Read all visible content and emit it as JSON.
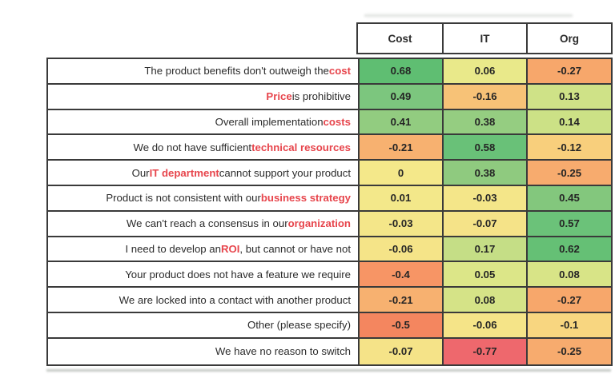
{
  "style": {
    "highlight_color": "#e7454c",
    "border_color": "#3a3a3a",
    "text_color": "#2b2b2b"
  },
  "table": {
    "columns": [
      "Cost",
      "IT",
      "Org"
    ],
    "rows": [
      {
        "label": {
          "pre": "The product benefits don't outweigh the ",
          "highlight": "cost",
          "post": ""
        },
        "cells": [
          {
            "value": "0.68",
            "color": "#5fbe72"
          },
          {
            "value": "0.06",
            "color": "#e9e98a"
          },
          {
            "value": "-0.27",
            "color": "#f7a76b"
          }
        ]
      },
      {
        "label": {
          "pre": "",
          "highlight": "Price",
          "post": " is prohibitive"
        },
        "cells": [
          {
            "value": "0.49",
            "color": "#7cc67e"
          },
          {
            "value": "-0.16",
            "color": "#f7c277"
          },
          {
            "value": "0.13",
            "color": "#cfe287"
          }
        ]
      },
      {
        "label": {
          "pre": "Overall implementation ",
          "highlight": "costs",
          "post": ""
        },
        "cells": [
          {
            "value": "0.41",
            "color": "#92cc80"
          },
          {
            "value": "0.38",
            "color": "#95cd81"
          },
          {
            "value": "0.14",
            "color": "#cce186"
          }
        ]
      },
      {
        "label": {
          "pre": "We do not have sufficient ",
          "highlight": "technical resources",
          "post": ""
        },
        "cells": [
          {
            "value": "-0.21",
            "color": "#f7b170"
          },
          {
            "value": "0.58",
            "color": "#69c178"
          },
          {
            "value": "-0.12",
            "color": "#f8cf7c"
          }
        ]
      },
      {
        "label": {
          "pre": "Our ",
          "highlight": "IT department",
          "post": " cannot support your product"
        },
        "cells": [
          {
            "value": "0",
            "color": "#f4e88a"
          },
          {
            "value": "0.38",
            "color": "#8fca7f"
          },
          {
            "value": "-0.25",
            "color": "#f7ab6e"
          }
        ]
      },
      {
        "label": {
          "pre": "Product is not consistent with our ",
          "highlight": "business strategy",
          "post": ""
        },
        "cells": [
          {
            "value": "0.01",
            "color": "#f3e88a"
          },
          {
            "value": "-0.03",
            "color": "#f4e689"
          },
          {
            "value": "0.45",
            "color": "#83c77d"
          }
        ]
      },
      {
        "label": {
          "pre": "We can't reach a consensus in our ",
          "highlight": "organization",
          "post": ""
        },
        "cells": [
          {
            "value": "-0.03",
            "color": "#f4e689"
          },
          {
            "value": "-0.07",
            "color": "#f5e388"
          },
          {
            "value": "0.57",
            "color": "#6bc279"
          }
        ]
      },
      {
        "label": {
          "pre": "I need to develop an ",
          "highlight": "ROI",
          "post": ", but cannot or have not"
        },
        "cells": [
          {
            "value": "-0.06",
            "color": "#f5e488"
          },
          {
            "value": "0.17",
            "color": "#c5de86"
          },
          {
            "value": "0.62",
            "color": "#65c075"
          }
        ]
      },
      {
        "label": {
          "pre": "Your product does not have a feature we require",
          "highlight": "",
          "post": ""
        },
        "cells": [
          {
            "value": "-0.4",
            "color": "#f79565"
          },
          {
            "value": "0.05",
            "color": "#dce688"
          },
          {
            "value": "0.08",
            "color": "#d8e487"
          }
        ]
      },
      {
        "label": {
          "pre": "We are locked into a contact with another product",
          "highlight": "",
          "post": ""
        },
        "cells": [
          {
            "value": "-0.21",
            "color": "#f7b170"
          },
          {
            "value": "0.08",
            "color": "#d5e387"
          },
          {
            "value": "-0.27",
            "color": "#f7a76b"
          }
        ]
      },
      {
        "label": {
          "pre": "Other (please specify)",
          "highlight": "",
          "post": ""
        },
        "cells": [
          {
            "value": "-0.5",
            "color": "#f4865f"
          },
          {
            "value": "-0.06",
            "color": "#f5e488"
          },
          {
            "value": "-0.1",
            "color": "#f8d680"
          }
        ]
      },
      {
        "label": {
          "pre": "We have no reason to switch",
          "highlight": "",
          "post": ""
        },
        "cells": [
          {
            "value": "-0.07",
            "color": "#f5e388"
          },
          {
            "value": "-0.77",
            "color": "#ee686d"
          },
          {
            "value": "-0.25",
            "color": "#f7ab6e"
          }
        ]
      }
    ]
  },
  "chart_data": {
    "type": "heatmap",
    "columns": [
      "Cost",
      "IT",
      "Org"
    ],
    "rows": [
      "The product benefits don't outweigh the cost",
      "Price is prohibitive",
      "Overall implementation costs",
      "We do not have sufficient technical resources",
      "Our IT department cannot support your product",
      "Product is not consistent with our business strategy",
      "We can't reach a consensus in our organization",
      "I need to develop an ROI, but cannot or have not",
      "Your product does not have a feature we require",
      "We are locked into a contact with another product",
      "Other (please specify)",
      "We have no reason to switch"
    ],
    "values": [
      [
        0.68,
        0.06,
        -0.27
      ],
      [
        0.49,
        -0.16,
        0.13
      ],
      [
        0.41,
        0.38,
        0.14
      ],
      [
        -0.21,
        0.58,
        -0.12
      ],
      [
        0,
        0.38,
        -0.25
      ],
      [
        0.01,
        -0.03,
        0.45
      ],
      [
        -0.03,
        -0.07,
        0.57
      ],
      [
        -0.06,
        0.17,
        0.62
      ],
      [
        -0.4,
        0.05,
        0.08
      ],
      [
        -0.21,
        0.08,
        -0.27
      ],
      [
        -0.5,
        -0.06,
        -0.1
      ],
      [
        -0.07,
        -0.77,
        -0.25
      ]
    ],
    "color_scale": "red-yellow-green",
    "value_range": [
      -0.77,
      0.68
    ],
    "grid": true,
    "legend": false
  }
}
